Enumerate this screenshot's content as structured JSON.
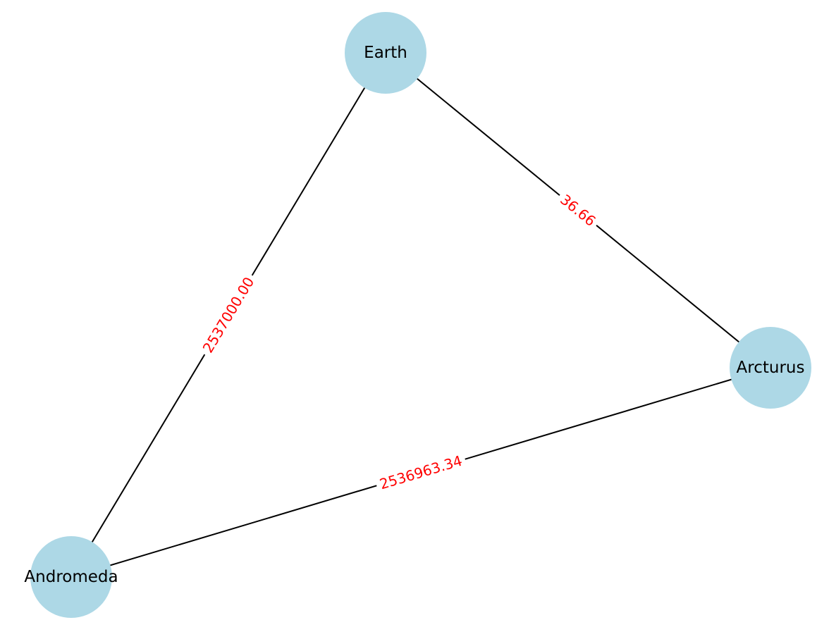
{
  "graph": {
    "nodes": [
      {
        "id": "earth",
        "label": "Earth"
      },
      {
        "id": "arcturus",
        "label": "Arcturus"
      },
      {
        "id": "andromeda",
        "label": "Andromeda"
      }
    ],
    "edges": [
      {
        "source": "earth",
        "target": "arcturus",
        "label": "36.66"
      },
      {
        "source": "earth",
        "target": "andromeda",
        "label": "2537000.00"
      },
      {
        "source": "arcturus",
        "target": "andromeda",
        "label": "2536963.34"
      }
    ]
  },
  "colors": {
    "node_fill": "#add8e6",
    "edge_stroke": "#000000",
    "edge_label": "#ff0000",
    "node_label": "#000000",
    "background": "#ffffff"
  }
}
